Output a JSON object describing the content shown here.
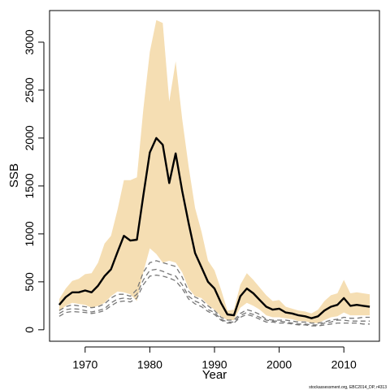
{
  "chart_data": {
    "type": "line",
    "xlabel": "Year",
    "ylabel": "SSB",
    "xlim": [
      1964.5,
      2015.5
    ],
    "ylim": [
      -120,
      3330
    ],
    "x_ticks": [
      1970,
      1980,
      1990,
      2000,
      2010
    ],
    "y_ticks": [
      0,
      500,
      1000,
      1500,
      2000,
      2500,
      3000
    ],
    "grid": false,
    "legend": "none",
    "footer": "stockassessment.org, EBC2014_DP, r4313",
    "colors": {
      "band": "#F5DEB3",
      "main": "#000000",
      "secondary": "#777777"
    },
    "x": [
      1966,
      1967,
      1968,
      1969,
      1970,
      1971,
      1972,
      1973,
      1974,
      1975,
      1976,
      1977,
      1978,
      1979,
      1980,
      1981,
      1982,
      1983,
      1984,
      1985,
      1986,
      1987,
      1988,
      1989,
      1990,
      1991,
      1992,
      1993,
      1994,
      1995,
      1996,
      1997,
      1998,
      1999,
      2000,
      2001,
      2002,
      2003,
      2004,
      2005,
      2006,
      2007,
      2008,
      2009,
      2010,
      2011,
      2012,
      2013,
      2014
    ],
    "series": [
      {
        "style": "solid-thick",
        "color": "#000000",
        "values": [
          260,
          340,
          390,
          390,
          410,
          390,
          460,
          560,
          630,
          810,
          980,
          930,
          940,
          1400,
          1850,
          2000,
          1930,
          1530,
          1840,
          1450,
          1110,
          800,
          650,
          500,
          430,
          280,
          160,
          150,
          350,
          430,
          380,
          310,
          240,
          210,
          220,
          180,
          170,
          150,
          140,
          120,
          140,
          200,
          240,
          260,
          330,
          250,
          260,
          250,
          240
        ]
      },
      {
        "style": "dashed",
        "color": "#777777",
        "values": [
          200,
          240,
          260,
          250,
          240,
          230,
          240,
          270,
          330,
          370,
          370,
          350,
          420,
          600,
          700,
          720,
          700,
          680,
          660,
          550,
          400,
          340,
          310,
          250,
          200,
          130,
          100,
          100,
          170,
          210,
          190,
          160,
          110,
          100,
          100,
          100,
          90,
          80,
          80,
          70,
          70,
          80,
          100,
          110,
          130,
          120,
          120,
          130,
          130
        ]
      },
      {
        "style": "dashed",
        "color": "#777777",
        "values": [
          170,
          210,
          220,
          215,
          200,
          185,
          200,
          220,
          280,
          320,
          330,
          320,
          370,
          520,
          620,
          630,
          610,
          580,
          560,
          470,
          350,
          300,
          270,
          210,
          180,
          110,
          80,
          80,
          150,
          180,
          160,
          130,
          100,
          90,
          90,
          80,
          70,
          60,
          60,
          50,
          50,
          70,
          80,
          100,
          100,
          90,
          90,
          90,
          90
        ]
      },
      {
        "style": "dashed",
        "color": "#777777",
        "values": [
          140,
          180,
          190,
          185,
          180,
          170,
          180,
          200,
          250,
          290,
          300,
          290,
          330,
          470,
          560,
          570,
          560,
          540,
          510,
          430,
          320,
          270,
          240,
          190,
          160,
          100,
          70,
          70,
          130,
          160,
          140,
          110,
          80,
          80,
          70,
          70,
          60,
          50,
          50,
          40,
          40,
          50,
          60,
          70,
          70,
          70,
          70,
          60,
          60
        ]
      }
    ],
    "band": {
      "upper": [
        320,
        430,
        510,
        530,
        580,
        590,
        700,
        900,
        980,
        1250,
        1560,
        1560,
        1590,
        2300,
        2900,
        3230,
        3200,
        2380,
        2800,
        2200,
        1700,
        1270,
        1020,
        720,
        620,
        420,
        200,
        210,
        470,
        590,
        520,
        440,
        360,
        300,
        310,
        240,
        220,
        200,
        190,
        170,
        210,
        300,
        360,
        380,
        520,
        380,
        390,
        380,
        370
      ],
      "lower": [
        190,
        250,
        280,
        270,
        260,
        230,
        250,
        280,
        350,
        400,
        390,
        370,
        300,
        600,
        850,
        790,
        700,
        720,
        700,
        600,
        430,
        350,
        330,
        260,
        210,
        140,
        100,
        100,
        230,
        280,
        250,
        210,
        150,
        130,
        130,
        120,
        110,
        90,
        90,
        70,
        70,
        100,
        130,
        140,
        180,
        150,
        150,
        150,
        150
      ]
    }
  }
}
